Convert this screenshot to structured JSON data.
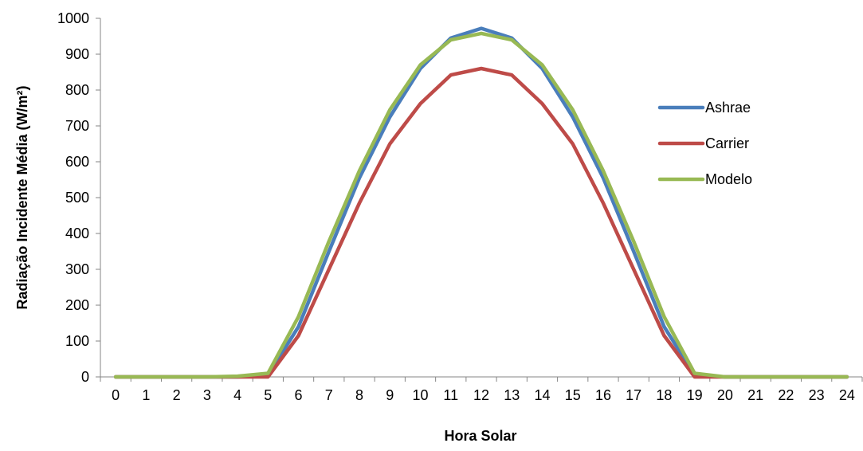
{
  "chart_data": {
    "type": "line",
    "title": "",
    "xlabel": "Hora Solar",
    "ylabel": "Radiação Incidente Média (W/m²)",
    "ylim": [
      0,
      1000
    ],
    "xlim": [
      0,
      24
    ],
    "yticks": [
      0,
      100,
      200,
      300,
      400,
      500,
      600,
      700,
      800,
      900,
      1000
    ],
    "x": [
      0,
      1,
      2,
      3,
      4,
      5,
      6,
      7,
      8,
      9,
      10,
      11,
      12,
      13,
      14,
      15,
      16,
      17,
      18,
      19,
      20,
      21,
      22,
      23,
      24
    ],
    "grid": false,
    "legend": "right",
    "series": [
      {
        "name": "Ashrae",
        "color": "#4A7EBB",
        "values": [
          0,
          0,
          0,
          0,
          0,
          5,
          140,
          350,
          555,
          725,
          860,
          945,
          972,
          945,
          860,
          725,
          555,
          350,
          140,
          5,
          0,
          0,
          0,
          0,
          0
        ]
      },
      {
        "name": "Carrier",
        "color": "#BE4B48",
        "values": [
          0,
          0,
          0,
          0,
          0,
          0,
          115,
          300,
          485,
          650,
          762,
          842,
          860,
          842,
          762,
          650,
          485,
          300,
          115,
          0,
          0,
          0,
          0,
          0,
          0
        ]
      },
      {
        "name": "Modelo",
        "color": "#98B954",
        "values": [
          0,
          0,
          0,
          0,
          2,
          10,
          168,
          378,
          575,
          745,
          870,
          940,
          958,
          940,
          870,
          745,
          575,
          378,
          168,
          10,
          0,
          0,
          0,
          0,
          0
        ]
      }
    ]
  }
}
